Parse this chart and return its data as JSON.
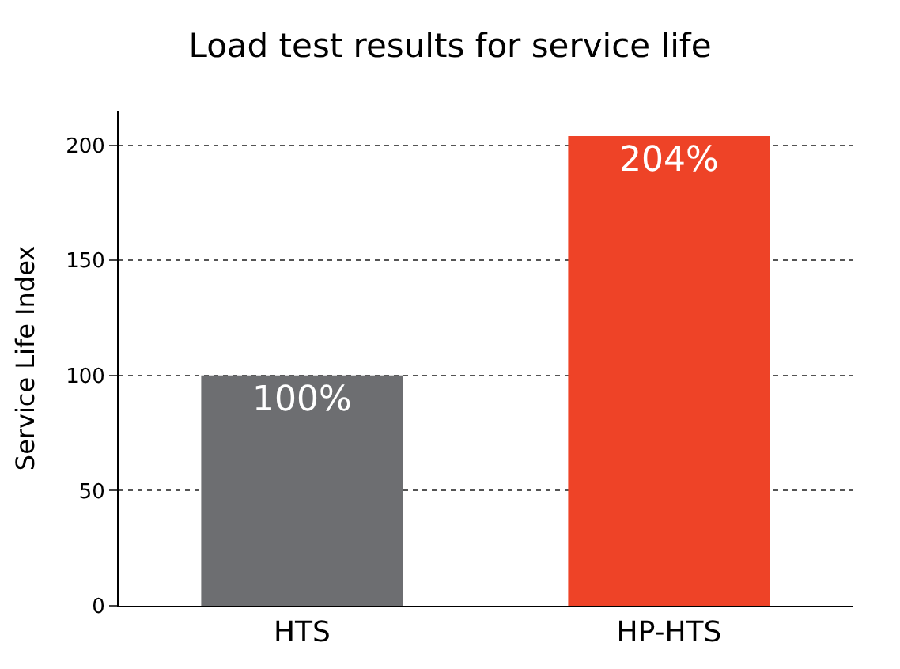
{
  "chart_data": {
    "type": "bar",
    "title": "Load test results for service life",
    "ylabel": "Service Life Index",
    "categories": [
      "HTS",
      "HP-HTS"
    ],
    "values": [
      100,
      204
    ],
    "colors": [
      "#6d6e71",
      "#ee4327"
    ],
    "value_labels": [
      "100%",
      "204%"
    ],
    "ylim": [
      0,
      215
    ],
    "yticks": [
      0,
      50,
      100,
      150,
      200
    ],
    "grid": "y",
    "legend": false
  }
}
